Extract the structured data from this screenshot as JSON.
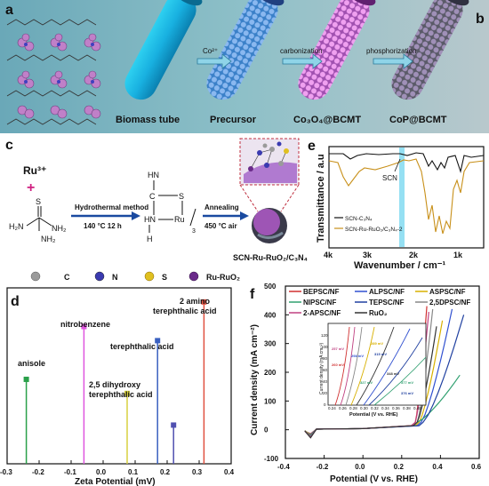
{
  "panel_a": {
    "letter": "a",
    "tube_labels": [
      "Biomass tube",
      "Precursor",
      "Co₃O₄@BCMT",
      "CoP@BCMT"
    ],
    "arrow_labels": [
      "Co²⁺",
      "carbonization",
      "phosphorization"
    ]
  },
  "panel_b": {
    "letter": "b"
  },
  "panel_c": {
    "letter": "c",
    "ru_ion": "Ru³⁺",
    "plus": "+",
    "thiourea": {
      "s": "S",
      "nh2_top": "NH₂",
      "h2n": "H₂N",
      "nh2_bot": "NH₂"
    },
    "step1": {
      "name": "Hydrothermal method",
      "cond": "140 °C  12 h"
    },
    "complex": {
      "hn_top": "HN",
      "c": "C",
      "s": "S",
      "hn": "HN",
      "ru": "Ru",
      "h": "H",
      "sub": "3"
    },
    "step2": {
      "name": "Annealing",
      "cond": "450 °C   air"
    },
    "product": "SCN-Ru-RuO₂/C₃N₄"
  },
  "legend_atoms": [
    {
      "label": "C",
      "color": "#9a9a9a"
    },
    {
      "label": "N",
      "color": "#3a3ab0"
    },
    {
      "label": "S",
      "color": "#e0c020"
    },
    {
      "label": "Ru-RuO₂",
      "color": "#6a2a8a"
    }
  ],
  "chart_data": [
    {
      "panel": "d",
      "type": "line",
      "xlabel": "Wavenumber / cm⁻¹",
      "ylabel": "Transmittance / a.u",
      "xticks": [
        "4k",
        "3k",
        "2k",
        "1k"
      ],
      "annotation": "SCN",
      "series": [
        {
          "name": "SCN-C₃N₄",
          "color": "#111111"
        },
        {
          "name": "SCN-Ru-RuO₂/C₃N₄-2",
          "color": "#c8901a"
        }
      ]
    },
    {
      "panel": "e",
      "type": "stem",
      "xlabel": "Zeta Potential (mV)",
      "xlim": [
        -0.3,
        0.4
      ],
      "xticks": [
        "-0.3",
        "-0.2",
        "-0.1",
        "0.0",
        "0.1",
        "0.2",
        "0.3",
        "0.4"
      ],
      "points": [
        {
          "x": -0.24,
          "h": 0.48,
          "color": "#2aa04a"
        },
        {
          "x": -0.06,
          "h": 0.78,
          "color": "#e055e0"
        },
        {
          "x": 0.075,
          "h": 0.4,
          "color": "#d8d040"
        },
        {
          "x": 0.17,
          "h": 0.7,
          "color": "#3a60c0"
        },
        {
          "x": 0.22,
          "h": 0.22,
          "color": "#5050b0"
        },
        {
          "x": 0.315,
          "h": 0.92,
          "color": "#e05040"
        }
      ],
      "annotations": [
        "anisole",
        "nitrobenzene",
        "2,5 dihydroxy",
        "terephthalic acid",
        "terephthalic acid",
        "2 amino",
        "terephthalic acid"
      ]
    },
    {
      "panel": "f",
      "type": "line",
      "xlabel": "Potential (V vs. RHE)",
      "ylabel": "Current density (mA cm⁻²)",
      "xlim": [
        -0.4,
        0.6
      ],
      "ylim": [
        -100,
        500
      ],
      "xticks": [
        "-0.4",
        "-0.2",
        "0.0",
        "0.2",
        "0.4",
        "0.6"
      ],
      "yticks": [
        "-100",
        "0",
        "100",
        "200",
        "300",
        "400",
        "500"
      ],
      "series": [
        {
          "name": "BEPSC/NF",
          "color": "#d03030",
          "onset": 0.27,
          "end_x": 0.33,
          "end_y": 430
        },
        {
          "name": "ALPSC/NF",
          "color": "#3050d0",
          "onset": 0.3,
          "end_x": 0.46,
          "end_y": 420
        },
        {
          "name": "ASPSC/NF",
          "color": "#d8b000",
          "onset": 0.29,
          "end_x": 0.41,
          "end_y": 380
        },
        {
          "name": "NIPSC/NF",
          "color": "#30a070",
          "onset": 0.28,
          "end_x": 0.5,
          "end_y": 190
        },
        {
          "name": "TEPSC/NF",
          "color": "#2040a0",
          "onset": 0.31,
          "end_x": 0.52,
          "end_y": 400
        },
        {
          "name": "2,5DPSC/NF",
          "color": "#888888",
          "onset": 0.28,
          "end_x": 0.36,
          "end_y": 420
        },
        {
          "name": "2-APSC/NF",
          "color": "#c04080",
          "onset": 0.27,
          "end_x": 0.34,
          "end_y": 410
        },
        {
          "name": "RuO₂",
          "color": "#333333",
          "onset": 0.28,
          "end_x": 0.38,
          "end_y": 360
        }
      ],
      "inset": {
        "xlabel": "Potential (V vs. RHE)",
        "ylabel": "Current density (mA cm⁻²)",
        "xticks": [
          "0.24",
          "0.26",
          "0.28",
          "0.30",
          "0.32",
          "0.34",
          "0.36",
          "0.38",
          "0.40"
        ],
        "yticks": [
          "0",
          "20",
          "40",
          "60",
          "80",
          "100",
          "120"
        ],
        "labels": [
          "257 mV",
          "260 mV",
          "289 mV",
          "298 mV",
          "315 mV",
          "327 mV",
          "348 mV",
          "377 mV",
          "376 mV"
        ]
      }
    }
  ]
}
